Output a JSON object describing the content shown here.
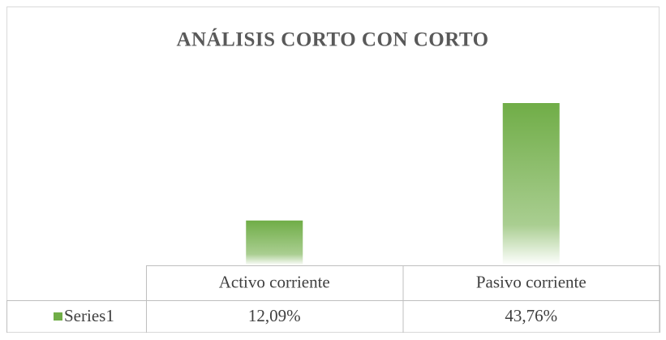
{
  "chart_data": {
    "type": "bar",
    "title": "ANÁLISIS CORTO CON CORTO",
    "categories": [
      "Activo corriente",
      "Pasivo corriente"
    ],
    "series": [
      {
        "name": "Series1",
        "color": "#70ad47",
        "values": [
          12.09,
          43.76
        ],
        "value_labels": [
          "12,09%",
          "43,76%"
        ]
      }
    ],
    "data_table": true
  }
}
